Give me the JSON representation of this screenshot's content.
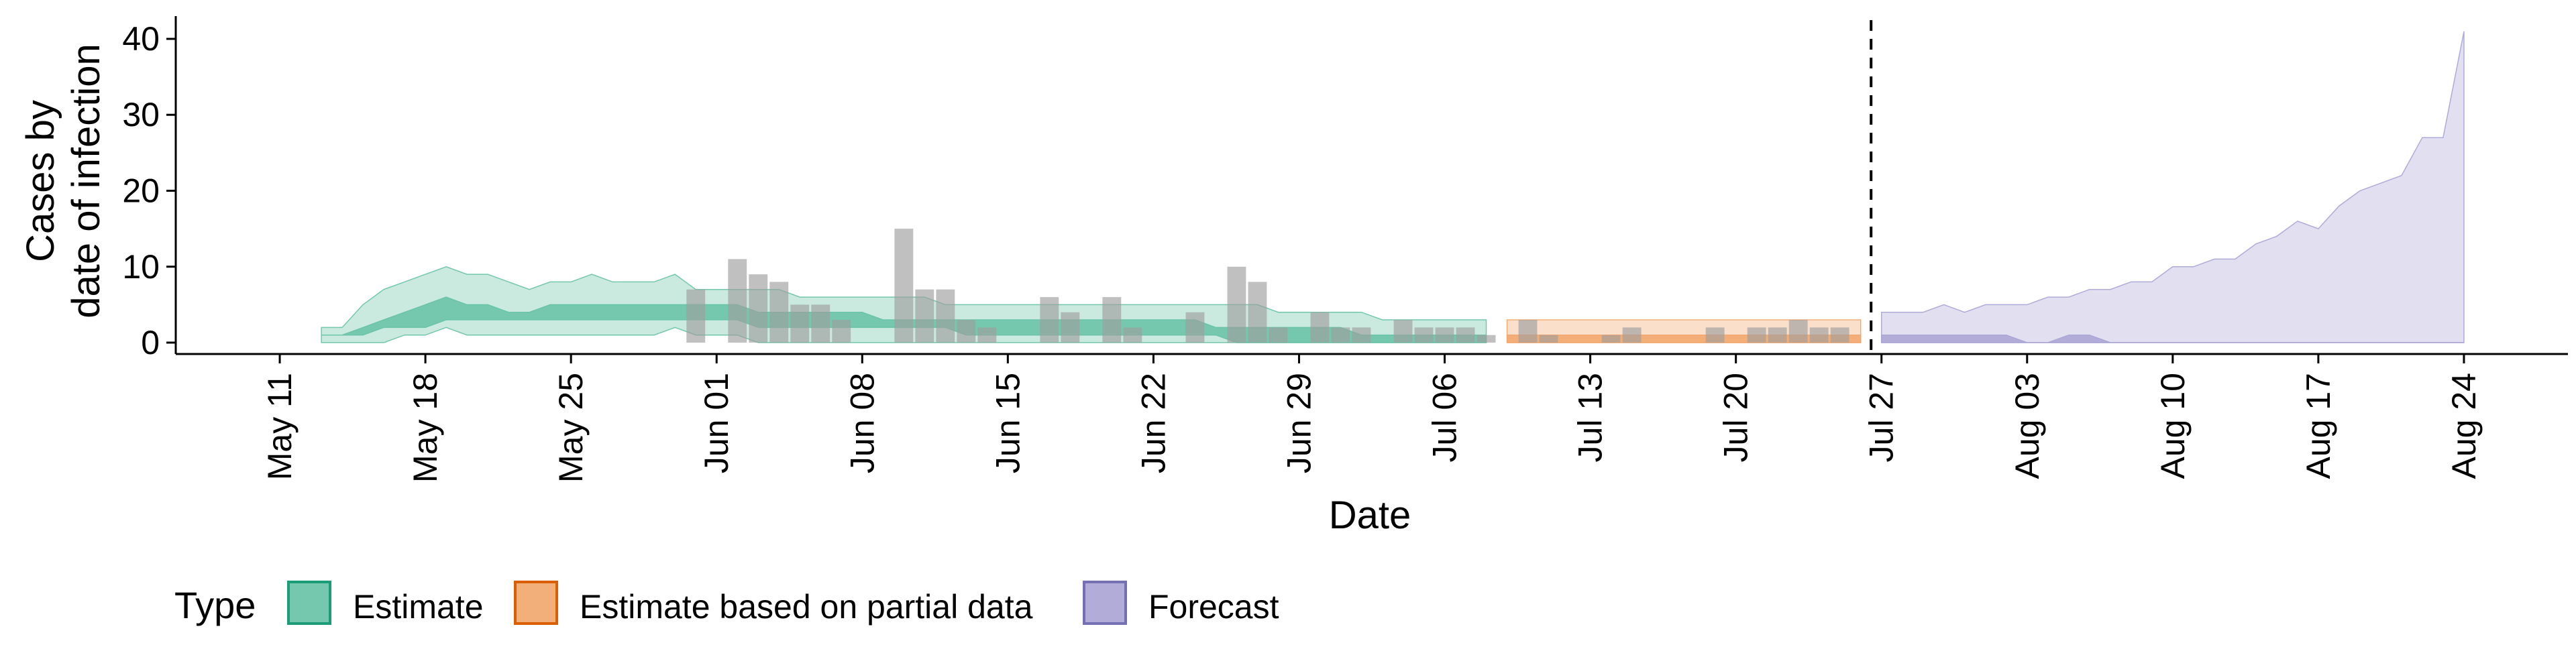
{
  "chart_data": {
    "type": "area",
    "title": "",
    "xlabel": "Date",
    "ylabel": [
      "Cases by",
      "date of infection"
    ],
    "xlim": [
      "2020-05-06",
      "2020-08-29"
    ],
    "ylim": [
      -1.5,
      43
    ],
    "x_ticks": [
      "May 11",
      "May 18",
      "May 25",
      "Jun 01",
      "Jun 08",
      "Jun 15",
      "Jun 22",
      "Jun 29",
      "Jul 06",
      "Jul 13",
      "Jul 20",
      "Jul 27",
      "Aug 03",
      "Aug 10",
      "Aug 17",
      "Aug 24"
    ],
    "x_tick_dates": [
      "2020-05-11",
      "2020-05-18",
      "2020-05-25",
      "2020-06-01",
      "2020-06-08",
      "2020-06-15",
      "2020-06-22",
      "2020-06-29",
      "2020-07-06",
      "2020-07-13",
      "2020-07-20",
      "2020-07-27",
      "2020-08-03",
      "2020-08-10",
      "2020-08-17",
      "2020-08-24"
    ],
    "y_ticks": [
      0,
      10,
      20,
      30,
      40
    ],
    "estimate_date": "2020-07-26",
    "legend": {
      "title": "Type",
      "position": "bottom",
      "items": [
        {
          "label": "Estimate",
          "color": "#66c2a5",
          "border": "#1b9e77"
        },
        {
          "label": "Estimate based on partial data",
          "color": "#f2a66b",
          "border": "#d95f02"
        },
        {
          "label": "Forecast",
          "color": "#a9a4d4",
          "border": "#7570b3"
        }
      ]
    },
    "observed_cases": {
      "color": "#9e9e9e",
      "dates": [
        "2020-05-31",
        "2020-06-02",
        "2020-06-03",
        "2020-06-04",
        "2020-06-05",
        "2020-06-06",
        "2020-06-07",
        "2020-06-10",
        "2020-06-11",
        "2020-06-12",
        "2020-06-13",
        "2020-06-14",
        "2020-06-17",
        "2020-06-18",
        "2020-06-20",
        "2020-06-21",
        "2020-06-24",
        "2020-06-26",
        "2020-06-27",
        "2020-06-28",
        "2020-06-30",
        "2020-07-01",
        "2020-07-02",
        "2020-07-04",
        "2020-07-05",
        "2020-07-06",
        "2020-07-07",
        "2020-07-08",
        "2020-07-10",
        "2020-07-11",
        "2020-07-14",
        "2020-07-15",
        "2020-07-19",
        "2020-07-21",
        "2020-07-22",
        "2020-07-23",
        "2020-07-24",
        "2020-07-25"
      ],
      "values": [
        7,
        11,
        9,
        8,
        5,
        5,
        3,
        15,
        7,
        7,
        3,
        2,
        6,
        4,
        6,
        2,
        4,
        10,
        8,
        2,
        4,
        2,
        2,
        3,
        2,
        2,
        2,
        1,
        3,
        1,
        1,
        2,
        2,
        2,
        2,
        3,
        2,
        2
      ]
    },
    "series": [
      {
        "name": "Estimate",
        "color": "#66c2a5",
        "dates": [
          "2020-05-13",
          "2020-05-14",
          "2020-05-15",
          "2020-05-16",
          "2020-05-17",
          "2020-05-18",
          "2020-05-19",
          "2020-05-20",
          "2020-05-21",
          "2020-05-22",
          "2020-05-23",
          "2020-05-24",
          "2020-05-25",
          "2020-05-26",
          "2020-05-27",
          "2020-05-28",
          "2020-05-29",
          "2020-05-30",
          "2020-05-31",
          "2020-06-01",
          "2020-06-02",
          "2020-06-03",
          "2020-06-04",
          "2020-06-05",
          "2020-06-06",
          "2020-06-07",
          "2020-06-08",
          "2020-06-09",
          "2020-06-10",
          "2020-06-11",
          "2020-06-12",
          "2020-06-13",
          "2020-06-14",
          "2020-06-15",
          "2020-06-16",
          "2020-06-17",
          "2020-06-18",
          "2020-06-19",
          "2020-06-20",
          "2020-06-21",
          "2020-06-22",
          "2020-06-23",
          "2020-06-24",
          "2020-06-25",
          "2020-06-26",
          "2020-06-27",
          "2020-06-28",
          "2020-06-29",
          "2020-06-30",
          "2020-07-01",
          "2020-07-02",
          "2020-07-03",
          "2020-07-04",
          "2020-07-05",
          "2020-07-06",
          "2020-07-07",
          "2020-07-08"
        ],
        "lower_90": [
          0,
          0,
          0,
          0,
          1,
          1,
          2,
          1,
          1,
          1,
          1,
          1,
          1,
          1,
          1,
          1,
          1,
          2,
          1,
          1,
          1,
          0,
          0,
          0,
          0,
          0,
          0,
          0,
          0,
          0,
          0,
          0,
          0,
          0,
          0,
          0,
          0,
          0,
          0,
          0,
          0,
          0,
          0,
          0,
          0,
          0,
          0,
          0,
          0,
          0,
          0,
          0,
          0,
          0,
          0,
          0,
          0
        ],
        "upper_90": [
          2,
          2,
          5,
          7,
          8,
          9,
          10,
          9,
          9,
          8,
          7,
          8,
          8,
          9,
          8,
          8,
          8,
          9,
          7,
          7,
          7,
          7,
          7,
          6,
          6,
          6,
          6,
          6,
          6,
          6,
          5,
          5,
          5,
          5,
          5,
          5,
          5,
          5,
          5,
          5,
          5,
          5,
          5,
          5,
          5,
          5,
          4,
          4,
          4,
          4,
          4,
          3,
          3,
          3,
          3,
          3,
          3
        ],
        "lower_50": [
          1,
          1,
          1,
          2,
          2,
          2,
          3,
          3,
          3,
          3,
          3,
          3,
          3,
          3,
          3,
          3,
          3,
          3,
          3,
          3,
          3,
          2,
          2,
          2,
          2,
          2,
          2,
          2,
          2,
          2,
          2,
          1,
          1,
          1,
          1,
          1,
          1,
          1,
          1,
          1,
          1,
          1,
          1,
          1,
          0,
          0,
          0,
          0,
          0,
          0,
          0,
          0,
          0,
          0,
          0,
          0,
          0
        ],
        "upper_50": [
          1,
          1,
          2,
          3,
          4,
          5,
          6,
          5,
          5,
          4,
          4,
          5,
          5,
          5,
          5,
          5,
          5,
          5,
          5,
          5,
          5,
          4,
          4,
          4,
          4,
          4,
          4,
          3,
          3,
          3,
          3,
          3,
          3,
          3,
          3,
          3,
          3,
          3,
          3,
          3,
          3,
          3,
          3,
          2,
          2,
          2,
          2,
          2,
          2,
          2,
          1,
          1,
          1,
          1,
          1,
          1,
          1
        ]
      },
      {
        "name": "Estimate based on partial data",
        "color": "#f2a66b",
        "dates": [
          "2020-07-09",
          "2020-07-26"
        ],
        "lower_90": [
          0,
          0
        ],
        "upper_90": [
          3,
          3
        ],
        "lower_50": [
          0,
          0
        ],
        "upper_50": [
          1,
          1
        ]
      },
      {
        "name": "Forecast",
        "color": "#a9a4d4",
        "dates": [
          "2020-07-27",
          "2020-07-28",
          "2020-07-29",
          "2020-07-30",
          "2020-07-31",
          "2020-08-01",
          "2020-08-02",
          "2020-08-03",
          "2020-08-04",
          "2020-08-05",
          "2020-08-06",
          "2020-08-07",
          "2020-08-08",
          "2020-08-09",
          "2020-08-10",
          "2020-08-11",
          "2020-08-12",
          "2020-08-13",
          "2020-08-14",
          "2020-08-15",
          "2020-08-16",
          "2020-08-17",
          "2020-08-18",
          "2020-08-19",
          "2020-08-20",
          "2020-08-21",
          "2020-08-22",
          "2020-08-23",
          "2020-08-24"
        ],
        "lower_90": [
          0,
          0,
          0,
          0,
          0,
          0,
          0,
          0,
          0,
          0,
          0,
          0,
          0,
          0,
          0,
          0,
          0,
          0,
          0,
          0,
          0,
          0,
          0,
          0,
          0,
          0,
          0,
          0,
          0
        ],
        "upper_90": [
          4,
          4,
          4,
          5,
          4,
          5,
          5,
          5,
          6,
          6,
          7,
          7,
          8,
          8,
          10,
          10,
          11,
          11,
          13,
          14,
          16,
          15,
          18,
          20,
          21,
          22,
          27,
          27,
          41
        ],
        "lower_50": [
          0,
          0,
          0,
          0,
          0,
          0,
          0,
          0,
          0,
          0,
          0,
          0,
          0,
          0,
          0,
          0,
          0,
          0,
          0,
          0,
          0,
          0,
          0,
          0,
          0,
          0,
          0,
          0,
          0
        ],
        "upper_50": [
          1,
          1,
          1,
          1,
          1,
          1,
          1,
          0,
          0,
          1,
          1,
          0,
          0,
          0,
          0,
          0,
          0,
          0,
          0,
          0,
          0,
          0,
          0,
          0,
          0,
          0,
          0,
          0,
          0
        ]
      }
    ]
  }
}
